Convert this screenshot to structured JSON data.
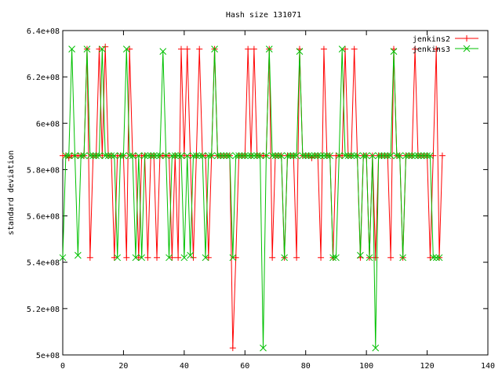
{
  "chart_data": {
    "type": "line",
    "title": "Hash size 131071",
    "xlabel": "",
    "ylabel": "standard deviation",
    "xlim": [
      0,
      140
    ],
    "ylim": [
      500000000.0,
      640000000.0
    ],
    "x_ticks": [
      0,
      20,
      40,
      60,
      80,
      100,
      120,
      140
    ],
    "x_tick_labels": [
      "0",
      "20",
      "40",
      "60",
      "80",
      "100",
      "120",
      "140"
    ],
    "y_ticks": [
      500000000.0,
      520000000.0,
      540000000.0,
      560000000.0,
      580000000.0,
      600000000.0,
      620000000.0,
      640000000.0
    ],
    "y_tick_labels": [
      "5e+08",
      "5.2e+08",
      "5.4e+08",
      "5.6e+08",
      "5.8e+08",
      "6e+08",
      "6.2e+08",
      "6.4e+08"
    ],
    "grid": false,
    "legend_position": "top-right",
    "series": [
      {
        "name": "jenkins2",
        "color": "#ff0000",
        "marker": "plus",
        "x": [
          0,
          1,
          2,
          3,
          4,
          5,
          6,
          7,
          8,
          9,
          10,
          11,
          12,
          13,
          14,
          15,
          16,
          17,
          18,
          19,
          20,
          21,
          22,
          23,
          24,
          25,
          26,
          27,
          28,
          29,
          30,
          31,
          32,
          33,
          34,
          35,
          36,
          37,
          38,
          39,
          40,
          41,
          42,
          43,
          44,
          45,
          46,
          47,
          48,
          49,
          50,
          51,
          52,
          53,
          54,
          55,
          56,
          57,
          58,
          59,
          60,
          61,
          62,
          63,
          64,
          65,
          66,
          67,
          68,
          69,
          70,
          71,
          72,
          73,
          74,
          75,
          76,
          77,
          78,
          79,
          80,
          81,
          82,
          83,
          84,
          85,
          86,
          87,
          88,
          89,
          90,
          91,
          92,
          93,
          94,
          95,
          96,
          97,
          98,
          99,
          100,
          101,
          102,
          103,
          104,
          105,
          106,
          107,
          108,
          109,
          110,
          111,
          112,
          113,
          114,
          115,
          116,
          117,
          118,
          119,
          120,
          121,
          122,
          123,
          124,
          125
        ],
        "values": [
          586000000.0,
          586000000.0,
          585000000.0,
          586000000.0,
          586000000.0,
          586000000.0,
          586000000.0,
          586000000.0,
          632000000.0,
          542000000.0,
          586000000.0,
          586000000.0,
          632000000.0,
          586000000.0,
          633000000.0,
          586000000.0,
          586000000.0,
          542000000.0,
          586000000.0,
          586000000.0,
          586000000.0,
          542000000.0,
          632000000.0,
          586000000.0,
          586000000.0,
          542000000.0,
          586000000.0,
          586000000.0,
          542000000.0,
          586000000.0,
          586000000.0,
          542000000.0,
          586000000.0,
          586000000.0,
          586000000.0,
          586000000.0,
          542000000.0,
          586000000.0,
          542000000.0,
          632000000.0,
          586000000.0,
          632000000.0,
          586000000.0,
          542000000.0,
          586000000.0,
          632000000.0,
          586000000.0,
          586000000.0,
          542000000.0,
          586000000.0,
          632000000.0,
          586000000.0,
          586000000.0,
          586000000.0,
          586000000.0,
          586000000.0,
          503000000.0,
          542000000.0,
          586000000.0,
          586000000.0,
          586000000.0,
          632000000.0,
          586000000.0,
          632000000.0,
          586000000.0,
          586000000.0,
          586000000.0,
          586000000.0,
          632000000.0,
          542000000.0,
          586000000.0,
          586000000.0,
          586000000.0,
          542000000.0,
          586000000.0,
          586000000.0,
          586000000.0,
          542000000.0,
          632000000.0,
          586000000.0,
          586000000.0,
          586000000.0,
          585000000.0,
          586000000.0,
          586000000.0,
          542000000.0,
          632000000.0,
          586000000.0,
          586000000.0,
          542000000.0,
          586000000.0,
          586000000.0,
          586000000.0,
          632000000.0,
          586000000.0,
          586000000.0,
          632000000.0,
          586000000.0,
          542000000.0,
          586000000.0,
          586000000.0,
          542000000.0,
          586000000.0,
          542000000.0,
          586000000.0,
          586000000.0,
          586000000.0,
          586000000.0,
          542000000.0,
          632000000.0,
          586000000.0,
          586000000.0,
          542000000.0,
          586000000.0,
          586000000.0,
          586000000.0,
          632000000.0,
          586000000.0,
          586000000.0,
          586000000.0,
          586000000.0,
          542000000.0,
          586000000.0,
          632000000.0,
          542000000.0,
          586000000.0
        ]
      },
      {
        "name": "jenkins3",
        "color": "#00c000",
        "marker": "cross",
        "x": [
          0,
          1,
          2,
          3,
          4,
          5,
          6,
          7,
          8,
          9,
          10,
          11,
          12,
          13,
          14,
          15,
          16,
          17,
          18,
          19,
          20,
          21,
          22,
          23,
          24,
          25,
          26,
          27,
          28,
          29,
          30,
          31,
          32,
          33,
          34,
          35,
          36,
          37,
          38,
          39,
          40,
          41,
          42,
          43,
          44,
          45,
          46,
          47,
          48,
          49,
          50,
          51,
          52,
          53,
          54,
          55,
          56,
          57,
          58,
          59,
          60,
          61,
          62,
          63,
          64,
          65,
          66,
          67,
          68,
          69,
          70,
          71,
          72,
          73,
          74,
          75,
          76,
          77,
          78,
          79,
          80,
          81,
          82,
          83,
          84,
          85,
          86,
          87,
          88,
          89,
          90,
          91,
          92,
          93,
          94,
          95,
          96,
          97,
          98,
          99,
          100,
          101,
          102,
          103,
          104,
          105,
          106,
          107,
          108,
          109,
          110,
          111,
          112,
          113,
          114,
          115,
          116,
          117,
          118,
          119,
          120,
          121,
          122,
          123,
          124
        ],
        "values": [
          542000000.0,
          586000000.0,
          586000000.0,
          632000000.0,
          586000000.0,
          543000000.0,
          586000000.0,
          586000000.0,
          632000000.0,
          586000000.0,
          586000000.0,
          586000000.0,
          586000000.0,
          632000000.0,
          586000000.0,
          586000000.0,
          586000000.0,
          586000000.0,
          542000000.0,
          586000000.0,
          586000000.0,
          632000000.0,
          586000000.0,
          586000000.0,
          542000000.0,
          586000000.0,
          542000000.0,
          586000000.0,
          586000000.0,
          586000000.0,
          586000000.0,
          586000000.0,
          586000000.0,
          631000000.0,
          586000000.0,
          542000000.0,
          586000000.0,
          586000000.0,
          586000000.0,
          586000000.0,
          542000000.0,
          586000000.0,
          543000000.0,
          586000000.0,
          586000000.0,
          586000000.0,
          586000000.0,
          542000000.0,
          586000000.0,
          586000000.0,
          632000000.0,
          586000000.0,
          586000000.0,
          586000000.0,
          586000000.0,
          586000000.0,
          542000000.0,
          586000000.0,
          586000000.0,
          586000000.0,
          586000000.0,
          586000000.0,
          586000000.0,
          586000000.0,
          586000000.0,
          586000000.0,
          503000000.0,
          586000000.0,
          632000000.0,
          586000000.0,
          586000000.0,
          586000000.0,
          586000000.0,
          542000000.0,
          586000000.0,
          586000000.0,
          586000000.0,
          586000000.0,
          631000000.0,
          586000000.0,
          586000000.0,
          586000000.0,
          586000000.0,
          586000000.0,
          586000000.0,
          586000000.0,
          586000000.0,
          586000000.0,
          586000000.0,
          542000000.0,
          542000000.0,
          586000000.0,
          632000000.0,
          586000000.0,
          586000000.0,
          586000000.0,
          586000000.0,
          586000000.0,
          543000000.0,
          586000000.0,
          586000000.0,
          542000000.0,
          586000000.0,
          503000000.0,
          586000000.0,
          586000000.0,
          586000000.0,
          586000000.0,
          586000000.0,
          631000000.0,
          586000000.0,
          586000000.0,
          542000000.0,
          586000000.0,
          586000000.0,
          586000000.0,
          586000000.0,
          586000000.0,
          586000000.0,
          586000000.0,
          586000000.0,
          586000000.0,
          542000000.0,
          542000000.0,
          542000000.0
        ]
      }
    ]
  }
}
